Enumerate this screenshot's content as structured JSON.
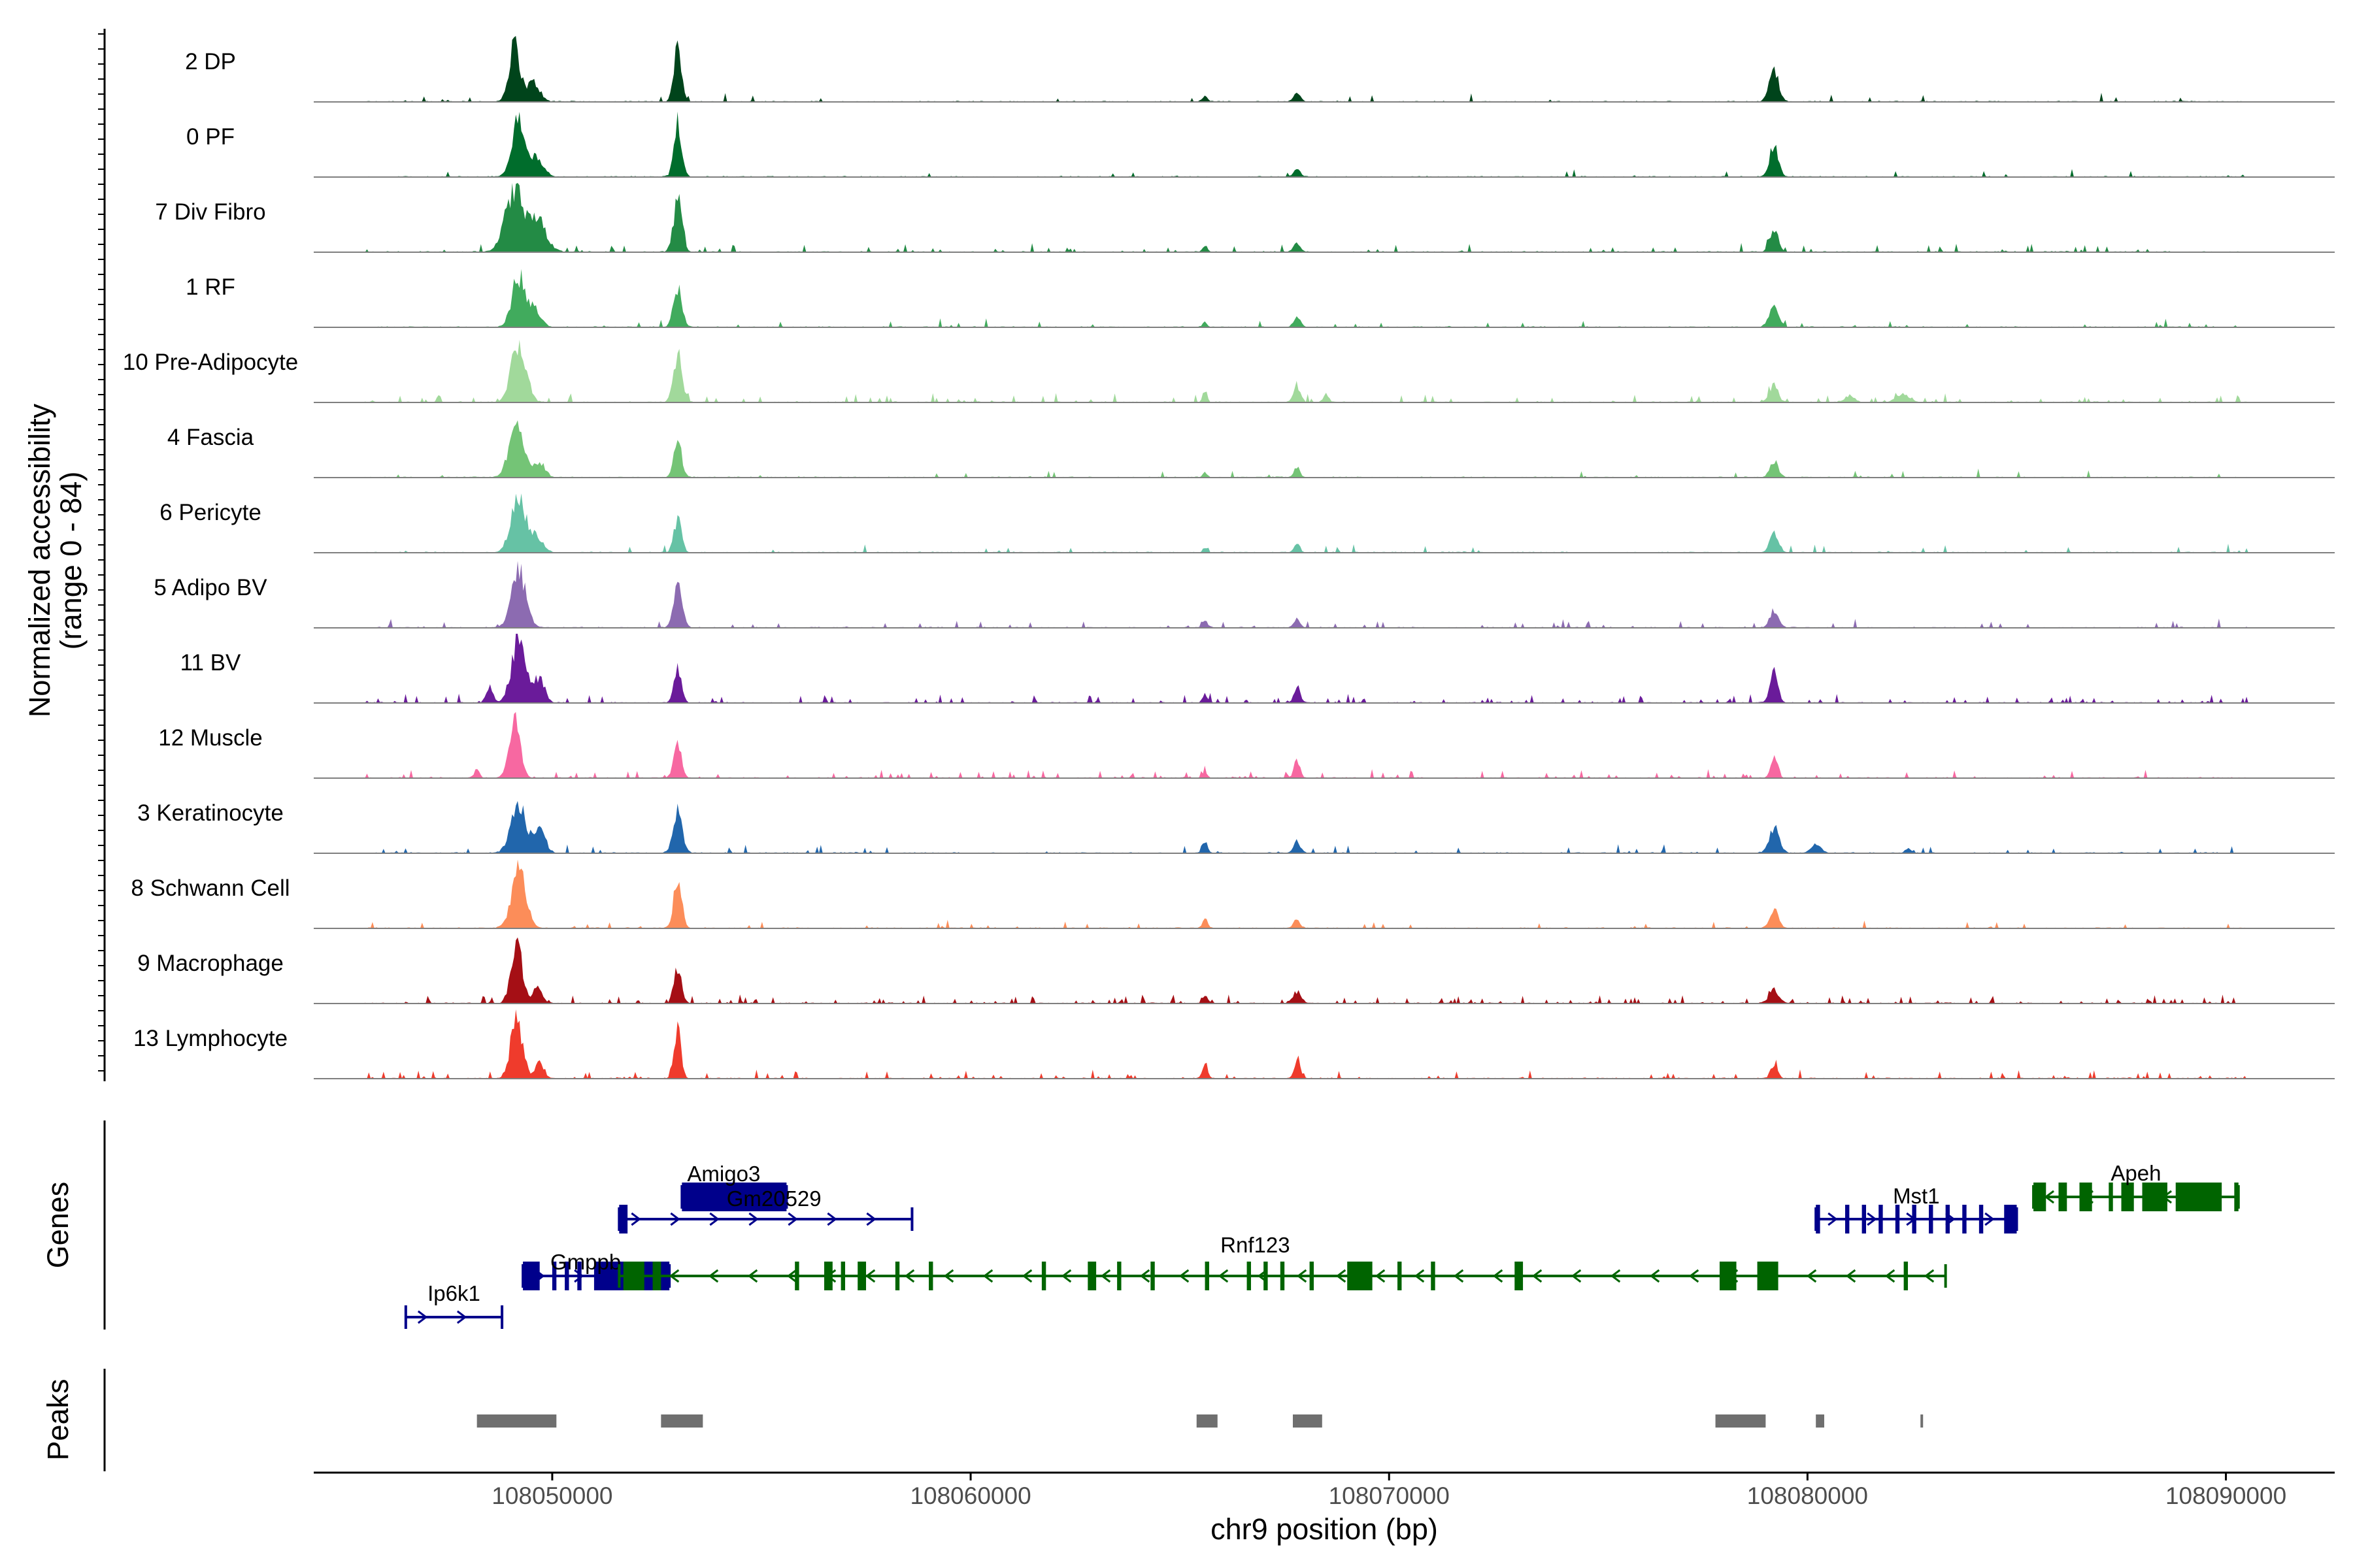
{
  "chart_data": {
    "type": "genome-coverage-track",
    "ylabel_line1": "Normalized accessibility",
    "ylabel_line2": "(range 0 - 84)",
    "y_range": [
      0,
      84
    ],
    "xlabel": "chr9 position (bp)",
    "xlim": [
      108044300,
      108092600
    ],
    "x_ticks": [
      108050000,
      108060000,
      108070000,
      108080000,
      108090000
    ],
    "x_tick_labels": [
      "108050000",
      "108060000",
      "108070000",
      "108080000",
      "108090000"
    ],
    "genes_label": "Genes",
    "peaks_label": "Peaks",
    "tracks": [
      {
        "name": "2 DP",
        "color": "#00441b",
        "noise": 0.1,
        "peaks": [
          [
            108049100,
            70,
            130
          ],
          [
            108049550,
            24,
            150
          ],
          [
            108053000,
            66,
            90
          ],
          [
            108065600,
            8,
            60
          ],
          [
            108067800,
            10,
            80
          ],
          [
            108079200,
            38,
            110
          ]
        ]
      },
      {
        "name": "0 PF",
        "color": "#006d2c",
        "noise": 0.1,
        "peaks": [
          [
            108049200,
            72,
            160
          ],
          [
            108049650,
            22,
            150
          ],
          [
            108053000,
            68,
            90
          ],
          [
            108067800,
            10,
            80
          ],
          [
            108079200,
            42,
            100
          ]
        ]
      },
      {
        "name": "7 Div Fibro",
        "color": "#238b45",
        "noise": 0.35,
        "peaks": [
          [
            108049100,
            75,
            220
          ],
          [
            108049650,
            40,
            200
          ],
          [
            108053000,
            64,
            100
          ],
          [
            108065600,
            8,
            60
          ],
          [
            108067800,
            12,
            80
          ],
          [
            108079200,
            28,
            100
          ]
        ]
      },
      {
        "name": "1 RF",
        "color": "#41ab5d",
        "noise": 0.12,
        "peaks": [
          [
            108049200,
            62,
            160
          ],
          [
            108049600,
            22,
            130
          ],
          [
            108053000,
            50,
            100
          ],
          [
            108065600,
            6,
            50
          ],
          [
            108067800,
            12,
            80
          ],
          [
            108079200,
            30,
            110
          ]
        ]
      },
      {
        "name": "10 Pre-Adipocyte",
        "color": "#a1d99b",
        "noise": 0.4,
        "peaks": [
          [
            108049200,
            74,
            170
          ],
          [
            108053000,
            60,
            100
          ],
          [
            108065600,
            16,
            50
          ],
          [
            108067800,
            20,
            80
          ],
          [
            108068500,
            10,
            60
          ],
          [
            108079200,
            22,
            100
          ],
          [
            108081000,
            8,
            120
          ],
          [
            108082300,
            10,
            150
          ]
        ]
      },
      {
        "name": "4 Fascia",
        "color": "#74c476",
        "noise": 0.12,
        "peaks": [
          [
            108049150,
            64,
            180
          ],
          [
            108049700,
            18,
            130
          ],
          [
            108053000,
            52,
            90
          ],
          [
            108065600,
            6,
            50
          ],
          [
            108067800,
            12,
            70
          ],
          [
            108079200,
            20,
            100
          ]
        ]
      },
      {
        "name": "6 Pericyte",
        "color": "#66c2a5",
        "noise": 0.12,
        "peaks": [
          [
            108049200,
            68,
            180
          ],
          [
            108049650,
            18,
            140
          ],
          [
            108053000,
            42,
            90
          ],
          [
            108065600,
            6,
            50
          ],
          [
            108067800,
            10,
            70
          ],
          [
            108079200,
            22,
            100
          ]
        ]
      },
      {
        "name": "5 Adipo BV",
        "color": "#8c6bb1",
        "noise": 0.2,
        "peaks": [
          [
            108049200,
            72,
            170
          ],
          [
            108053000,
            58,
            100
          ],
          [
            108065600,
            8,
            60
          ],
          [
            108067800,
            10,
            80
          ],
          [
            108079200,
            22,
            100
          ]
        ]
      },
      {
        "name": "11 BV",
        "color": "#6a1b9a",
        "noise": 0.5,
        "peaks": [
          [
            108049200,
            76,
            170
          ],
          [
            108049700,
            30,
            120
          ],
          [
            108048500,
            20,
            80
          ],
          [
            108053000,
            38,
            90
          ],
          [
            108065600,
            10,
            60
          ],
          [
            108067800,
            16,
            80
          ],
          [
            108079200,
            40,
            90
          ]
        ]
      },
      {
        "name": "12 Muscle",
        "color": "#f768a1",
        "noise": 0.45,
        "peaks": [
          [
            108049100,
            74,
            130
          ],
          [
            108048200,
            10,
            60
          ],
          [
            108053000,
            40,
            90
          ],
          [
            108065600,
            8,
            50
          ],
          [
            108067800,
            22,
            70
          ],
          [
            108079200,
            28,
            80
          ]
        ]
      },
      {
        "name": "3 Keratinocyte",
        "color": "#2166ac",
        "noise": 0.2,
        "peaks": [
          [
            108049200,
            58,
            180
          ],
          [
            108049700,
            26,
            140
          ],
          [
            108053000,
            50,
            110
          ],
          [
            108065600,
            14,
            60
          ],
          [
            108067800,
            14,
            80
          ],
          [
            108079200,
            32,
            120
          ],
          [
            108080200,
            10,
            120
          ],
          [
            108082400,
            6,
            60
          ]
        ]
      },
      {
        "name": "8 Schwann Cell",
        "color": "#fc8d59",
        "noise": 0.15,
        "peaks": [
          [
            108049200,
            72,
            170
          ],
          [
            108053000,
            52,
            100
          ],
          [
            108065600,
            12,
            60
          ],
          [
            108067800,
            10,
            80
          ],
          [
            108079200,
            24,
            100
          ]
        ]
      },
      {
        "name": "9 Macrophage",
        "color": "#a50f15",
        "noise": 0.55,
        "peaks": [
          [
            108049150,
            78,
            130
          ],
          [
            108049650,
            22,
            110
          ],
          [
            108053000,
            46,
            90
          ],
          [
            108065600,
            10,
            60
          ],
          [
            108067800,
            14,
            100
          ],
          [
            108079200,
            16,
            120
          ]
        ]
      },
      {
        "name": "13 Lymphocyte",
        "color": "#ef3b2c",
        "noise": 0.45,
        "peaks": [
          [
            108049150,
            76,
            140
          ],
          [
            108049700,
            20,
            100
          ],
          [
            108053000,
            60,
            80
          ],
          [
            108065600,
            22,
            60
          ],
          [
            108067800,
            18,
            80
          ],
          [
            108079200,
            16,
            80
          ]
        ]
      }
    ],
    "genes": [
      {
        "name": "Ip6k1",
        "strand": "+",
        "color": "#00008b",
        "start": 108046500,
        "end": 108048800,
        "row": 3,
        "exons": []
      },
      {
        "name": "Gmppb",
        "strand": "+",
        "color": "#00008b",
        "start": 108049300,
        "end": 108052800,
        "row": 2,
        "exons": [
          [
            108049300,
            108049700
          ],
          [
            108050000,
            108050100
          ],
          [
            108050300,
            108050400
          ],
          [
            108050600,
            108050700
          ],
          [
            108051000,
            108052800
          ]
        ]
      },
      {
        "name": "Amigo3",
        "strand": "+",
        "color": "#00008b",
        "start": 108053100,
        "end": 108055600,
        "row": 0,
        "exons": [
          [
            108053100,
            108055600
          ]
        ]
      },
      {
        "name": "Gm20529",
        "strand": "+",
        "color": "#00008b",
        "start": 108051600,
        "end": 108058600,
        "row": 1,
        "exons": [
          [
            108051600,
            108051800
          ]
        ]
      },
      {
        "name": "Rnf123",
        "strand": "-",
        "color": "#006400",
        "start": 108051600,
        "end": 108083300,
        "row": 2,
        "exons": [
          [
            108051700,
            108052200
          ],
          [
            108052400,
            108052600
          ],
          [
            108055800,
            108055900
          ],
          [
            108056500,
            108056700
          ],
          [
            108056900,
            108057000
          ],
          [
            108057300,
            108057500
          ],
          [
            108058200,
            108058300
          ],
          [
            108059000,
            108059100
          ],
          [
            108061700,
            108061800
          ],
          [
            108062800,
            108063000
          ],
          [
            108063500,
            108063600
          ],
          [
            108064300,
            108064400
          ],
          [
            108065600,
            108065700
          ],
          [
            108066600,
            108066700
          ],
          [
            108067000,
            108067100
          ],
          [
            108067400,
            108067500
          ],
          [
            108068100,
            108068200
          ],
          [
            108069000,
            108069600
          ],
          [
            108070200,
            108070300
          ],
          [
            108071000,
            108071100
          ],
          [
            108073000,
            108073200
          ],
          [
            108077900,
            108078300
          ],
          [
            108078800,
            108079300
          ],
          [
            108082300,
            108082400
          ]
        ]
      },
      {
        "name": "Mst1",
        "strand": "+",
        "color": "#00008b",
        "start": 108080200,
        "end": 108085000,
        "row": 1,
        "exons": [
          [
            108080200,
            108080300
          ],
          [
            108080900,
            108081000
          ],
          [
            108081300,
            108081400
          ],
          [
            108081700,
            108081800
          ],
          [
            108082100,
            108082200
          ],
          [
            108082500,
            108082600
          ],
          [
            108082900,
            108083000
          ],
          [
            108083300,
            108083400
          ],
          [
            108083700,
            108083800
          ],
          [
            108084100,
            108084200
          ],
          [
            108084700,
            108085000
          ]
        ]
      },
      {
        "name": "Apeh",
        "strand": "-",
        "color": "#006400",
        "start": 108085400,
        "end": 108090300,
        "row": 0,
        "exons": [
          [
            108085400,
            108085700
          ],
          [
            108086000,
            108086200
          ],
          [
            108086500,
            108086800
          ],
          [
            108087200,
            108087300
          ],
          [
            108087500,
            108087800
          ],
          [
            108088000,
            108088600
          ],
          [
            108088800,
            108089900
          ],
          [
            108090200,
            108090300
          ]
        ]
      }
    ],
    "peaks": [
      [
        108048200,
        108050100
      ],
      [
        108052600,
        108053600
      ],
      [
        108065400,
        108065900
      ],
      [
        108067700,
        108068400
      ],
      [
        108077800,
        108079000
      ],
      [
        108080200,
        108080400
      ],
      [
        108082700,
        108082750
      ]
    ]
  }
}
